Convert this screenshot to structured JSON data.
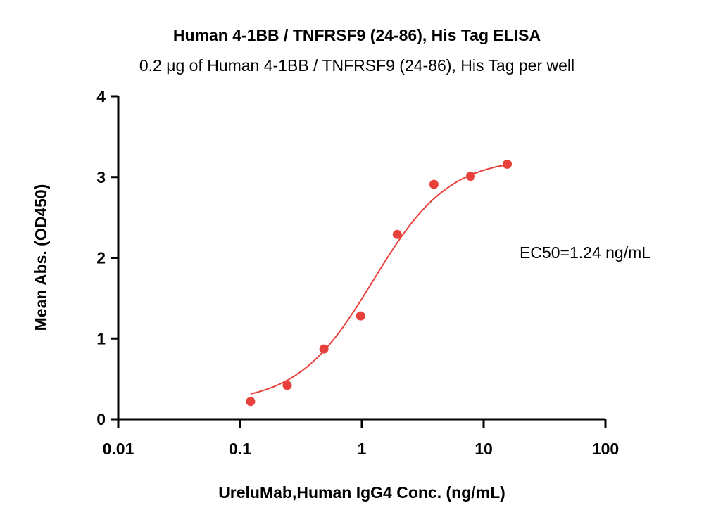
{
  "chart_data": {
    "type": "scatter",
    "title": "Human 4-1BB / TNFRSF9 (24-86), His Tag ELISA",
    "subtitle": "0.2 μg of Human 4-1BB / TNFRSF9 (24-86), His Tag per well",
    "xlabel": "UreluMab,Human IgG4 Conc. (ng/mL)",
    "ylabel": "Mean Abs. (OD450)",
    "x_scale": "log",
    "xlim": [
      0.01,
      100
    ],
    "ylim": [
      0,
      4
    ],
    "x_ticks": [
      "0.01",
      "0.1",
      "1",
      "10",
      "100"
    ],
    "y_ticks": [
      "0",
      "1",
      "2",
      "3",
      "4"
    ],
    "grid": false,
    "annotation": "EC50=1.24 ng/mL",
    "series": [
      {
        "x": [
          0.122,
          0.244,
          0.488,
          0.977,
          1.953,
          3.906,
          7.813,
          15.625
        ],
        "y": [
          0.22,
          0.42,
          0.87,
          1.28,
          2.29,
          2.91,
          3.01,
          3.16
        ],
        "color": "#e8413c"
      }
    ],
    "fit": {
      "model": "4PL",
      "bottom": 0.2,
      "top": 3.24,
      "ec50": 1.24,
      "hill": 1.4,
      "color": "#e8413c"
    }
  }
}
